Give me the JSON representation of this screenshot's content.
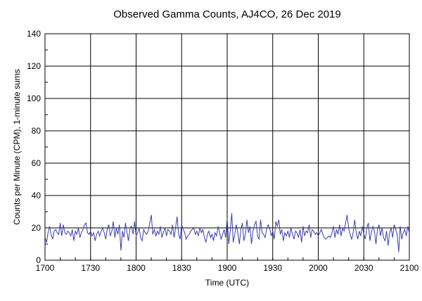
{
  "chart_data": {
    "type": "line",
    "title": "Observed Gamma Counts, AJ4CO, 26 Dec 2019",
    "xlabel": "Time (UTC)",
    "ylabel": "Counts per Minute (CPM), 1-minute sums",
    "x_start": "1700",
    "x_step_minutes": 1,
    "xticks": [
      "1700",
      "1730",
      "1800",
      "1830",
      "1900",
      "1930",
      "2000",
      "2030",
      "2100"
    ],
    "yticks": [
      0,
      20,
      40,
      60,
      80,
      100,
      120,
      140
    ],
    "ylim": [
      0,
      140
    ],
    "xlim": [
      "1700",
      "2100"
    ],
    "grid": true,
    "line_color": "#3c3caa",
    "values": [
      14,
      11,
      17,
      21,
      16,
      13,
      18,
      19,
      17,
      16,
      23,
      15,
      22,
      17,
      16,
      18,
      17,
      15,
      19,
      12,
      18,
      16,
      20,
      14,
      17,
      19,
      22,
      23,
      17,
      16,
      18,
      15,
      17,
      12,
      16,
      18,
      15,
      18,
      20,
      17,
      13,
      19,
      22,
      15,
      18,
      24,
      14,
      20,
      16,
      22,
      6,
      18,
      14,
      23,
      17,
      12,
      20,
      21,
      16,
      24,
      15,
      17,
      20,
      14,
      12,
      19,
      17,
      16,
      18,
      23,
      28,
      16,
      19,
      15,
      18,
      16,
      21,
      14,
      17,
      20,
      15,
      19,
      18,
      16,
      22,
      14,
      20,
      27,
      16,
      13,
      22,
      19,
      17,
      13,
      15,
      16,
      18,
      19,
      20,
      16,
      18,
      15,
      20,
      17,
      19,
      14,
      11,
      16,
      18,
      14,
      16,
      12,
      17,
      15,
      21,
      17,
      13,
      16,
      19,
      14,
      26,
      10,
      18,
      29,
      11,
      16,
      22,
      17,
      10,
      19,
      23,
      12,
      16,
      25,
      17,
      21,
      10,
      18,
      22,
      24,
      15,
      13,
      25,
      17,
      16,
      14,
      19,
      22,
      20,
      15,
      18,
      13,
      24,
      21,
      25,
      16,
      19,
      12,
      17,
      15,
      18,
      14,
      20,
      16,
      13,
      18,
      17,
      14,
      19,
      11,
      21,
      15,
      18,
      17,
      22,
      14,
      19,
      18,
      16,
      17,
      15,
      17,
      19,
      16,
      14,
      13,
      14,
      15,
      14,
      17,
      21,
      14,
      19,
      16,
      22,
      15,
      20,
      18,
      23,
      28,
      20,
      16,
      13,
      17,
      25,
      17,
      13,
      18,
      15,
      21,
      16,
      13,
      20,
      23,
      12,
      17,
      21,
      18,
      10,
      19,
      22,
      15,
      20,
      14,
      12,
      18,
      9,
      17,
      20,
      14,
      22,
      19,
      16,
      5,
      21,
      13,
      17,
      19,
      15,
      21,
      17
    ]
  }
}
